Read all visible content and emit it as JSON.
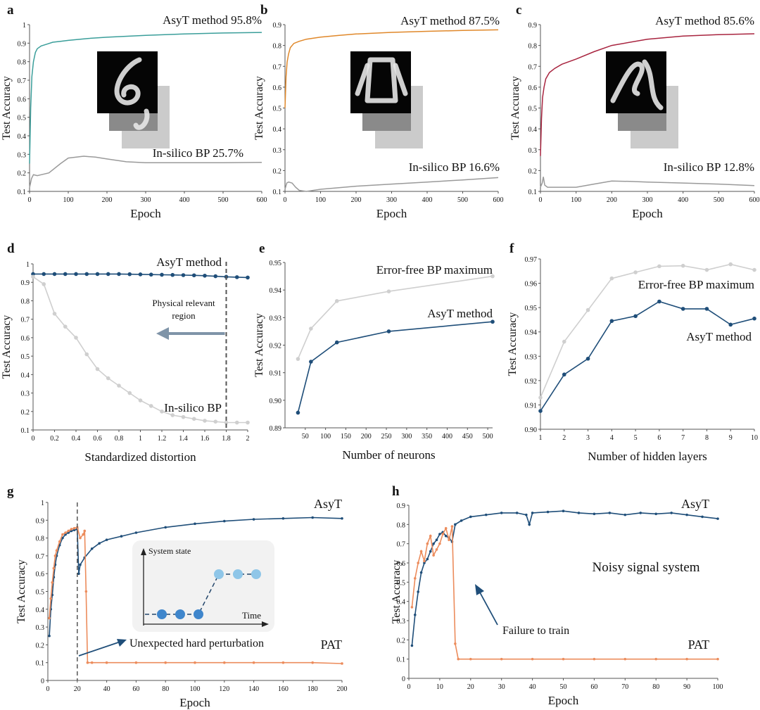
{
  "colors": {
    "teal": "#3a9e9a",
    "orange": "#e0882a",
    "crimson": "#a8243f",
    "gray": "#9a9a9a",
    "lightgray": "#cfcfcf",
    "navy": "#1f4e79",
    "salmon": "#ec8c5c",
    "arrow": "#7f94a8",
    "ltblue": "#8fc6e8",
    "midblue": "#3f86cc"
  },
  "chart_data": [
    {
      "panel": "a",
      "type": "line",
      "xlabel": "Epoch",
      "ylabel": "Test Accuracy",
      "xlim": [
        0,
        600
      ],
      "ylim": [
        0.1,
        1
      ],
      "xticks": [
        "0",
        "100",
        "200",
        "300",
        "400",
        "500",
        "600"
      ],
      "yticks": [
        "0.1",
        "0.2",
        "0.3",
        "0.4",
        "0.5",
        "0.6",
        "0.7",
        "0.8",
        "0.9",
        "1"
      ],
      "series": [
        {
          "name": "AsyT method",
          "x": [
            0,
            3,
            6,
            10,
            15,
            20,
            30,
            45,
            60,
            80,
            100,
            150,
            200,
            300,
            400,
            500,
            600
          ],
          "values": [
            0.25,
            0.55,
            0.72,
            0.8,
            0.85,
            0.87,
            0.885,
            0.895,
            0.905,
            0.91,
            0.915,
            0.925,
            0.932,
            0.942,
            0.95,
            0.955,
            0.958
          ]
        },
        {
          "name": "In-silico BP",
          "x": [
            0,
            5,
            10,
            20,
            30,
            50,
            80,
            100,
            140,
            170,
            200,
            250,
            300,
            400,
            500,
            600
          ],
          "values": [
            0.12,
            0.17,
            0.19,
            0.185,
            0.19,
            0.2,
            0.25,
            0.28,
            0.29,
            0.285,
            0.275,
            0.26,
            0.255,
            0.255,
            0.255,
            0.257
          ]
        }
      ],
      "annotations": [
        "AsyT method 95.8%",
        "In-silico BP 25.7%"
      ]
    },
    {
      "panel": "b",
      "type": "line",
      "xlabel": "Epoch",
      "ylabel": "Test Accuracy",
      "xlim": [
        0,
        600
      ],
      "ylim": [
        0.1,
        0.9
      ],
      "xticks": [
        "0",
        "100",
        "200",
        "300",
        "400",
        "500",
        "600"
      ],
      "yticks": [
        "0.1",
        "0.2",
        "0.3",
        "0.4",
        "0.5",
        "0.6",
        "0.7",
        "0.8",
        "0.9"
      ],
      "series": [
        {
          "name": "AsyT method",
          "x": [
            0,
            3,
            6,
            10,
            15,
            25,
            40,
            60,
            100,
            150,
            200,
            300,
            400,
            500,
            600
          ],
          "values": [
            0.5,
            0.65,
            0.72,
            0.76,
            0.79,
            0.81,
            0.82,
            0.83,
            0.84,
            0.848,
            0.855,
            0.863,
            0.868,
            0.872,
            0.875
          ]
        },
        {
          "name": "In-silico BP",
          "x": [
            0,
            5,
            10,
            20,
            30,
            40,
            60,
            80,
            100,
            200,
            300,
            400,
            500,
            600
          ],
          "values": [
            0.11,
            0.14,
            0.145,
            0.14,
            0.12,
            0.105,
            0.1,
            0.105,
            0.11,
            0.125,
            0.135,
            0.145,
            0.155,
            0.166
          ]
        }
      ],
      "annotations": [
        "AsyT method 87.5%",
        "In-silico BP 16.6%"
      ]
    },
    {
      "panel": "c",
      "type": "line",
      "xlabel": "Epoch",
      "ylabel": "Test Accuracy",
      "xlim": [
        0,
        600
      ],
      "ylim": [
        0.1,
        0.9
      ],
      "xticks": [
        "0",
        "100",
        "200",
        "300",
        "400",
        "500",
        "600"
      ],
      "yticks": [
        "0.1",
        "0.2",
        "0.3",
        "0.4",
        "0.5",
        "0.6",
        "0.7",
        "0.8",
        "0.9"
      ],
      "series": [
        {
          "name": "AsyT method",
          "x": [
            0,
            3,
            6,
            10,
            15,
            25,
            40,
            60,
            100,
            150,
            200,
            300,
            400,
            500,
            600
          ],
          "values": [
            0.27,
            0.45,
            0.55,
            0.6,
            0.64,
            0.67,
            0.69,
            0.71,
            0.735,
            0.77,
            0.8,
            0.83,
            0.845,
            0.852,
            0.856
          ]
        },
        {
          "name": "In-silico BP",
          "x": [
            0,
            5,
            8,
            12,
            20,
            40,
            100,
            150,
            200,
            250,
            300,
            400,
            500,
            600
          ],
          "values": [
            0.12,
            0.14,
            0.17,
            0.13,
            0.12,
            0.12,
            0.12,
            0.135,
            0.15,
            0.148,
            0.145,
            0.14,
            0.135,
            0.128
          ]
        }
      ],
      "annotations": [
        "AsyT method 85.6%",
        "In-silico BP 12.8%"
      ]
    },
    {
      "panel": "d",
      "type": "line",
      "xlabel": "Standardized distortion",
      "ylabel": "Test Accuracy",
      "xlim": [
        0,
        2
      ],
      "ylim": [
        0.1,
        1
      ],
      "xticks": [
        "0",
        "0.2",
        "0.4",
        "0.6",
        "0.8",
        "1",
        "1.2",
        "1.4",
        "1.6",
        "1.8",
        "2"
      ],
      "yticks": [
        "0.1",
        "0.2",
        "0.3",
        "0.4",
        "0.5",
        "0.6",
        "0.7",
        "0.8",
        "0.9",
        "1"
      ],
      "series": [
        {
          "name": "AsyT method",
          "x": [
            0,
            0.1,
            0.2,
            0.3,
            0.4,
            0.5,
            0.6,
            0.7,
            0.8,
            0.9,
            1.0,
            1.1,
            1.2,
            1.3,
            1.4,
            1.5,
            1.6,
            1.7,
            1.8,
            1.9,
            2.0
          ],
          "values": [
            0.945,
            0.945,
            0.945,
            0.945,
            0.945,
            0.945,
            0.945,
            0.945,
            0.945,
            0.944,
            0.943,
            0.942,
            0.941,
            0.94,
            0.939,
            0.938,
            0.936,
            0.933,
            0.93,
            0.928,
            0.926
          ]
        },
        {
          "name": "In-silico BP",
          "x": [
            0,
            0.1,
            0.2,
            0.3,
            0.4,
            0.5,
            0.6,
            0.7,
            0.8,
            0.9,
            1.0,
            1.1,
            1.2,
            1.3,
            1.4,
            1.5,
            1.6,
            1.7,
            1.8,
            1.9,
            2.0
          ],
          "values": [
            0.93,
            0.89,
            0.73,
            0.66,
            0.6,
            0.51,
            0.43,
            0.38,
            0.34,
            0.3,
            0.26,
            0.23,
            0.2,
            0.18,
            0.17,
            0.16,
            0.15,
            0.145,
            0.14,
            0.14,
            0.14
          ]
        }
      ],
      "annotations": [
        "AsyT method",
        "In-silico BP",
        "Physical relevant",
        "region"
      ],
      "marker_x": 1.8
    },
    {
      "panel": "e",
      "type": "line",
      "xlabel": "Number of neurons",
      "ylabel": "Test Accuracy",
      "xlim": [
        0,
        512
      ],
      "ylim": [
        0.89,
        0.95
      ],
      "xticks": [
        "50",
        "100",
        "150",
        "200",
        "250",
        "300",
        "350",
        "400",
        "450",
        "500"
      ],
      "yticks": [
        "0.89",
        "0.90",
        "0.91",
        "0.92",
        "0.93",
        "0.94",
        "0.95"
      ],
      "series": [
        {
          "name": "Error-free BP maximum",
          "x": [
            32,
            64,
            128,
            256,
            512
          ],
          "values": [
            0.915,
            0.926,
            0.936,
            0.9395,
            0.945
          ]
        },
        {
          "name": "AsyT method",
          "x": [
            32,
            64,
            128,
            256,
            512
          ],
          "values": [
            0.8955,
            0.914,
            0.921,
            0.925,
            0.9285
          ]
        }
      ],
      "annotations": [
        "Error-free BP maximum",
        "AsyT method"
      ]
    },
    {
      "panel": "f",
      "type": "line",
      "xlabel": "Number of hidden layers",
      "ylabel": "Test Accuracy",
      "xlim": [
        1,
        10
      ],
      "ylim": [
        0.9,
        0.97
      ],
      "xticks": [
        "1",
        "2",
        "3",
        "4",
        "5",
        "6",
        "7",
        "8",
        "9",
        "10"
      ],
      "yticks": [
        "0.90",
        "0.91",
        "0.92",
        "0.93",
        "0.94",
        "0.95",
        "0.96",
        "0.97"
      ],
      "series": [
        {
          "name": "Error-free BP maximum",
          "x": [
            1,
            2,
            3,
            4,
            5,
            6,
            7,
            8,
            9,
            10
          ],
          "values": [
            0.913,
            0.936,
            0.949,
            0.962,
            0.9645,
            0.967,
            0.9672,
            0.9655,
            0.9678,
            0.9655
          ]
        },
        {
          "name": "AsyT method",
          "x": [
            1,
            2,
            3,
            4,
            5,
            6,
            7,
            8,
            9,
            10
          ],
          "values": [
            0.9075,
            0.9225,
            0.929,
            0.9445,
            0.9465,
            0.9525,
            0.9495,
            0.9495,
            0.943,
            0.9455
          ]
        }
      ],
      "annotations": [
        "Error-free BP maximum",
        "AsyT method"
      ]
    },
    {
      "panel": "g",
      "type": "line",
      "xlabel": "Epoch",
      "ylabel": "Test Accuracy",
      "xlim": [
        0,
        200
      ],
      "ylim": [
        0,
        1
      ],
      "xticks": [
        "0",
        "20",
        "40",
        "60",
        "80",
        "100",
        "120",
        "140",
        "160",
        "180",
        "200"
      ],
      "yticks": [
        "0",
        "0.1",
        "0.2",
        "0.3",
        "0.4",
        "0.5",
        "0.6",
        "0.7",
        "0.8",
        "0.9",
        "1"
      ],
      "series": [
        {
          "name": "AsyT",
          "x": [
            1,
            2,
            3,
            4,
            5,
            6,
            8,
            10,
            12,
            14,
            16,
            18,
            20,
            21,
            22,
            25,
            30,
            35,
            40,
            50,
            60,
            80,
            100,
            120,
            140,
            160,
            180,
            200
          ],
          "values": [
            0.25,
            0.4,
            0.48,
            0.58,
            0.65,
            0.7,
            0.76,
            0.8,
            0.82,
            0.83,
            0.84,
            0.845,
            0.85,
            0.6,
            0.65,
            0.69,
            0.74,
            0.77,
            0.79,
            0.81,
            0.83,
            0.86,
            0.88,
            0.895,
            0.905,
            0.91,
            0.915,
            0.91
          ]
        },
        {
          "name": "PAT",
          "x": [
            1,
            2,
            3,
            4,
            5,
            6,
            8,
            10,
            12,
            14,
            16,
            18,
            20,
            22,
            24,
            25,
            26,
            27,
            30,
            40,
            60,
            80,
            100,
            120,
            140,
            160,
            180,
            200
          ],
          "values": [
            0.35,
            0.46,
            0.55,
            0.63,
            0.7,
            0.73,
            0.78,
            0.82,
            0.83,
            0.84,
            0.85,
            0.855,
            0.86,
            0.8,
            0.82,
            0.84,
            0.5,
            0.1,
            0.1,
            0.1,
            0.1,
            0.1,
            0.1,
            0.1,
            0.1,
            0.1,
            0.1,
            0.095
          ]
        }
      ],
      "annotations": [
        "AsyT",
        "PAT",
        "Unexpected hard perturbation",
        "System state",
        "Time"
      ],
      "marker_x": 20
    },
    {
      "panel": "h",
      "type": "line",
      "xlabel": "Epoch",
      "ylabel": "Test Accuracy",
      "xlim": [
        0,
        100
      ],
      "ylim": [
        0,
        0.9
      ],
      "xticks": [
        "0",
        "10",
        "20",
        "30",
        "40",
        "50",
        "60",
        "70",
        "80",
        "90",
        "100"
      ],
      "yticks": [
        "0",
        "0.1",
        "0.2",
        "0.3",
        "0.4",
        "0.5",
        "0.6",
        "0.7",
        "0.8",
        "0.9"
      ],
      "series": [
        {
          "name": "AsyT",
          "x": [
            1,
            2,
            3,
            4,
            5,
            6,
            7,
            8,
            9,
            10,
            11,
            12,
            13,
            14,
            15,
            17,
            20,
            25,
            30,
            35,
            38,
            39,
            40,
            45,
            50,
            55,
            60,
            65,
            70,
            75,
            80,
            85,
            90,
            95,
            100
          ],
          "values": [
            0.17,
            0.33,
            0.45,
            0.55,
            0.6,
            0.62,
            0.66,
            0.7,
            0.72,
            0.75,
            0.76,
            0.74,
            0.73,
            0.71,
            0.8,
            0.82,
            0.84,
            0.85,
            0.86,
            0.86,
            0.85,
            0.8,
            0.86,
            0.865,
            0.87,
            0.86,
            0.855,
            0.86,
            0.85,
            0.86,
            0.855,
            0.86,
            0.85,
            0.84,
            0.83
          ]
        },
        {
          "name": "PAT",
          "x": [
            1,
            2,
            3,
            4,
            5,
            6,
            7,
            8,
            9,
            10,
            11,
            12,
            13,
            14,
            15,
            16,
            20,
            30,
            40,
            50,
            60,
            70,
            80,
            90,
            100
          ],
          "values": [
            0.37,
            0.52,
            0.6,
            0.66,
            0.61,
            0.7,
            0.74,
            0.64,
            0.67,
            0.7,
            0.75,
            0.78,
            0.72,
            0.79,
            0.18,
            0.1,
            0.1,
            0.1,
            0.1,
            0.1,
            0.1,
            0.1,
            0.1,
            0.1,
            0.1
          ]
        }
      ],
      "annotations": [
        "AsyT",
        "PAT",
        "Noisy signal system",
        "Failure to train"
      ]
    }
  ]
}
